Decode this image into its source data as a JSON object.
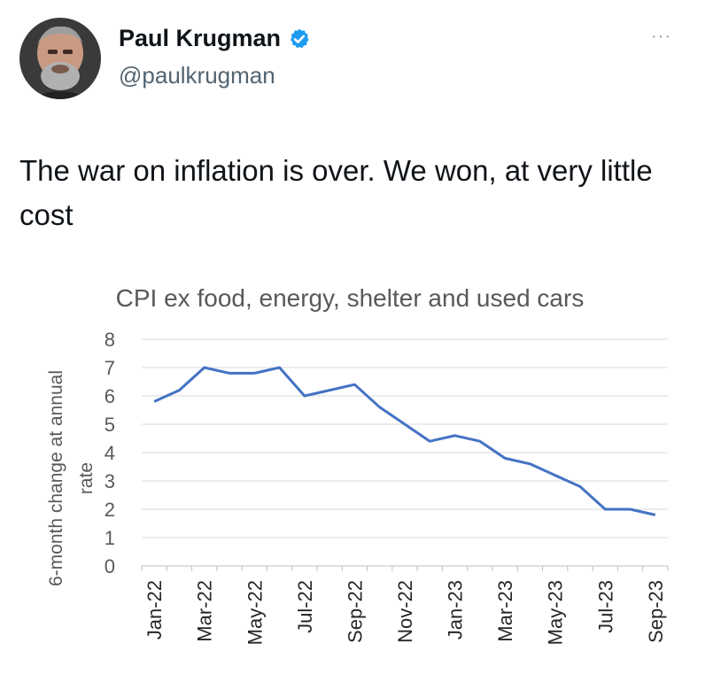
{
  "tweet": {
    "author_name": "Paul Krugman",
    "handle": "@paulkrugman",
    "more_label": "···",
    "text": "The war on inflation is over. We won, at very little cost"
  },
  "colors": {
    "verified": "#1d9bf0",
    "line": "#4472c4",
    "grid": "#d9d9d9"
  },
  "chart_data": {
    "type": "line",
    "title": "CPI ex food, energy, shelter and used cars",
    "ylabel": "6-month change at annual rate",
    "ylabel_lines": [
      "6-month change at annual",
      "rate"
    ],
    "xlabel": "",
    "ylim": [
      0,
      8
    ],
    "yticks": [
      0,
      1,
      2,
      3,
      4,
      5,
      6,
      7,
      8
    ],
    "grid": true,
    "x": [
      "Jan-22",
      "Feb-22",
      "Mar-22",
      "Apr-22",
      "May-22",
      "Jun-22",
      "Jul-22",
      "Aug-22",
      "Sep-22",
      "Oct-22",
      "Nov-22",
      "Dec-22",
      "Jan-23",
      "Feb-23",
      "Mar-23",
      "Apr-23",
      "May-23",
      "Jun-23",
      "Jul-23",
      "Aug-23",
      "Sep-23"
    ],
    "xtick_labels": [
      "Jan-22",
      "Mar-22",
      "May-22",
      "Jul-22",
      "Sep-22",
      "Nov-22",
      "Jan-23",
      "Mar-23",
      "May-23",
      "Jul-23",
      "Sep-23"
    ],
    "series": [
      {
        "values": [
          5.8,
          6.2,
          7.0,
          6.8,
          6.8,
          7.0,
          6.0,
          6.2,
          6.4,
          5.6,
          5.0,
          4.4,
          4.6,
          4.4,
          3.8,
          3.6,
          3.2,
          2.8,
          2.0,
          2.0,
          1.8
        ]
      }
    ]
  }
}
